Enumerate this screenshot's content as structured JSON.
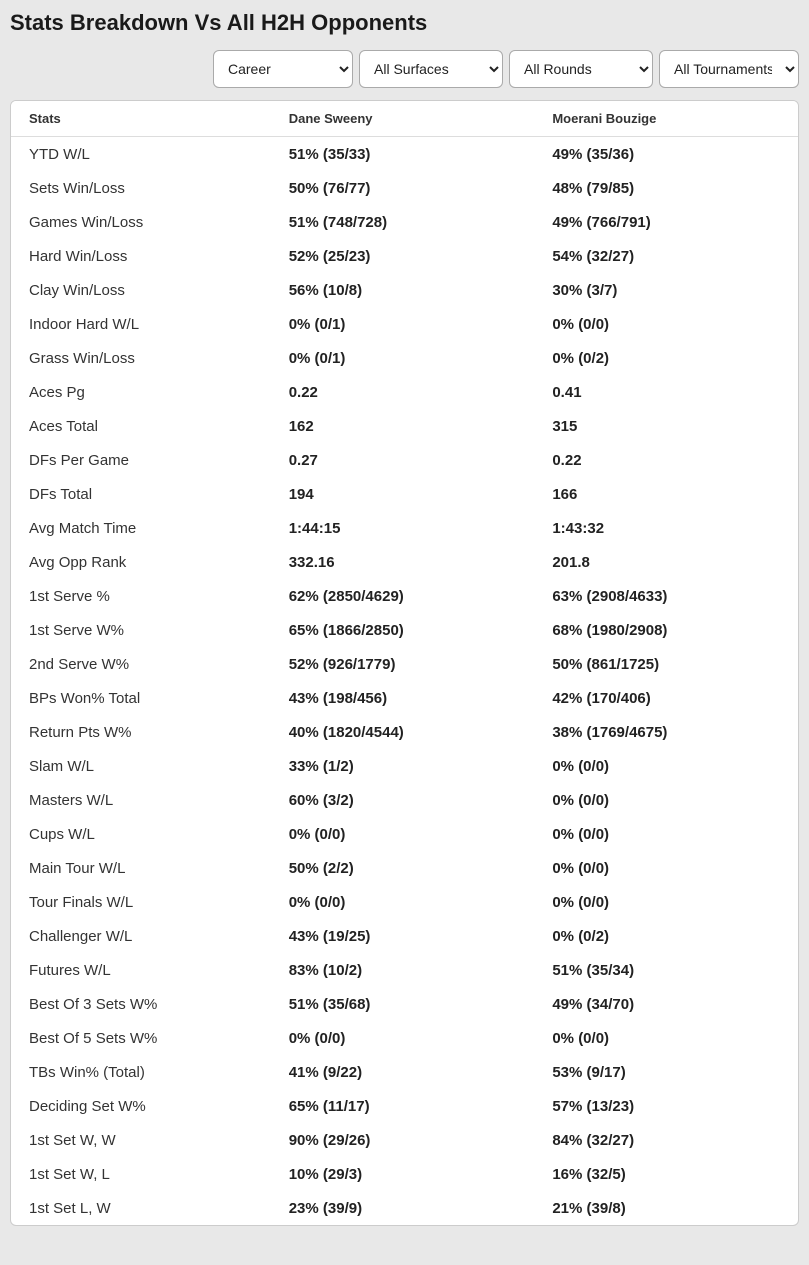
{
  "title": "Stats Breakdown Vs All H2H Opponents",
  "filters": {
    "period": {
      "selected": "Career"
    },
    "surface": {
      "selected": "All Surfaces"
    },
    "round": {
      "selected": "All Rounds"
    },
    "tournament": {
      "selected": "All Tournaments"
    }
  },
  "columns": {
    "stats": "Stats",
    "player1": "Dane Sweeny",
    "player2": "Moerani Bouzige"
  },
  "rows": [
    {
      "stat": "YTD W/L",
      "p1": "51% (35/33)",
      "p2": "49% (35/36)"
    },
    {
      "stat": "Sets Win/Loss",
      "p1": "50% (76/77)",
      "p2": "48% (79/85)"
    },
    {
      "stat": "Games Win/Loss",
      "p1": "51% (748/728)",
      "p2": "49% (766/791)"
    },
    {
      "stat": "Hard Win/Loss",
      "p1": "52% (25/23)",
      "p2": "54% (32/27)"
    },
    {
      "stat": "Clay Win/Loss",
      "p1": "56% (10/8)",
      "p2": "30% (3/7)"
    },
    {
      "stat": "Indoor Hard W/L",
      "p1": "0% (0/1)",
      "p2": "0% (0/0)"
    },
    {
      "stat": "Grass Win/Loss",
      "p1": "0% (0/1)",
      "p2": "0% (0/2)"
    },
    {
      "stat": "Aces Pg",
      "p1": "0.22",
      "p2": "0.41"
    },
    {
      "stat": "Aces Total",
      "p1": "162",
      "p2": "315"
    },
    {
      "stat": "DFs Per Game",
      "p1": "0.27",
      "p2": "0.22"
    },
    {
      "stat": "DFs Total",
      "p1": "194",
      "p2": "166"
    },
    {
      "stat": "Avg Match Time",
      "p1": "1:44:15",
      "p2": "1:43:32"
    },
    {
      "stat": "Avg Opp Rank",
      "p1": "332.16",
      "p2": "201.8"
    },
    {
      "stat": "1st Serve %",
      "p1": "62% (2850/4629)",
      "p2": "63% (2908/4633)"
    },
    {
      "stat": "1st Serve W%",
      "p1": "65% (1866/2850)",
      "p2": "68% (1980/2908)"
    },
    {
      "stat": "2nd Serve W%",
      "p1": "52% (926/1779)",
      "p2": "50% (861/1725)"
    },
    {
      "stat": "BPs Won% Total",
      "p1": "43% (198/456)",
      "p2": "42% (170/406)"
    },
    {
      "stat": "Return Pts W%",
      "p1": "40% (1820/4544)",
      "p2": "38% (1769/4675)"
    },
    {
      "stat": "Slam W/L",
      "p1": "33% (1/2)",
      "p2": "0% (0/0)"
    },
    {
      "stat": "Masters W/L",
      "p1": "60% (3/2)",
      "p2": "0% (0/0)"
    },
    {
      "stat": "Cups W/L",
      "p1": "0% (0/0)",
      "p2": "0% (0/0)"
    },
    {
      "stat": "Main Tour W/L",
      "p1": "50% (2/2)",
      "p2": "0% (0/0)"
    },
    {
      "stat": "Tour Finals W/L",
      "p1": "0% (0/0)",
      "p2": "0% (0/0)"
    },
    {
      "stat": "Challenger W/L",
      "p1": "43% (19/25)",
      "p2": "0% (0/2)"
    },
    {
      "stat": "Futures W/L",
      "p1": "83% (10/2)",
      "p2": "51% (35/34)"
    },
    {
      "stat": "Best Of 3 Sets W%",
      "p1": "51% (35/68)",
      "p2": "49% (34/70)"
    },
    {
      "stat": "Best Of 5 Sets W%",
      "p1": "0% (0/0)",
      "p2": "0% (0/0)"
    },
    {
      "stat": "TBs Win% (Total)",
      "p1": "41% (9/22)",
      "p2": "53% (9/17)"
    },
    {
      "stat": "Deciding Set W%",
      "p1": "65% (11/17)",
      "p2": "57% (13/23)"
    },
    {
      "stat": "1st Set W, W",
      "p1": "90% (29/26)",
      "p2": "84% (32/27)"
    },
    {
      "stat": "1st Set W, L",
      "p1": "10% (29/3)",
      "p2": "16% (32/5)"
    },
    {
      "stat": "1st Set L, W",
      "p1": "23% (39/9)",
      "p2": "21% (39/8)"
    }
  ]
}
